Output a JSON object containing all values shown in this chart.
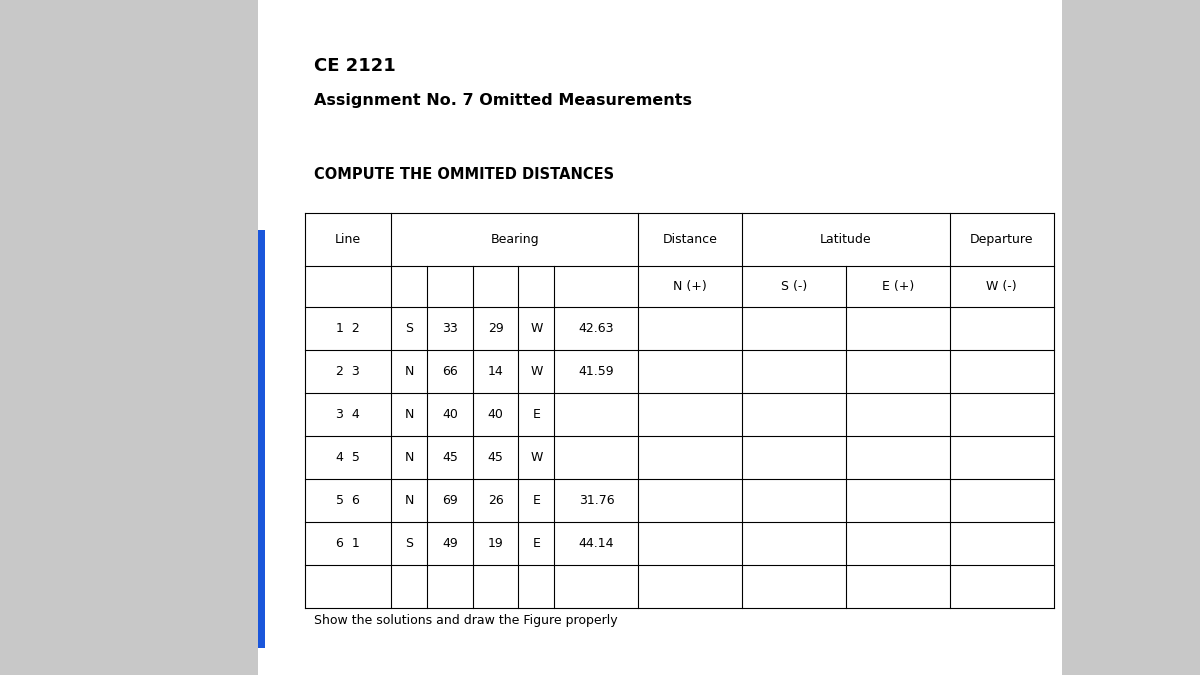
{
  "title1": "CE 2121",
  "title2": "Assignment No. 7 Omitted Measurements",
  "subtitle": "COMPUTE THE OMMITED DISTANCES",
  "footer": "Show the solutions and draw the Figure properly",
  "page_bg": "#c8c8c8",
  "blue_bar_color": "#1a56db",
  "rows": [
    [
      "1  2",
      "S",
      "33",
      "29",
      "W",
      "42.63"
    ],
    [
      "2  3",
      "N",
      "66",
      "14",
      "W",
      "41.59"
    ],
    [
      "3  4",
      "N",
      "40",
      "40",
      "E",
      ""
    ],
    [
      "4  5",
      "N",
      "45",
      "45",
      "W",
      ""
    ],
    [
      "5  6",
      "N",
      "69",
      "26",
      "E",
      "31.76"
    ],
    [
      "6  1",
      "S",
      "49",
      "19",
      "E",
      "44.14"
    ],
    [
      "",
      "",
      "",
      "",
      "",
      ""
    ]
  ]
}
